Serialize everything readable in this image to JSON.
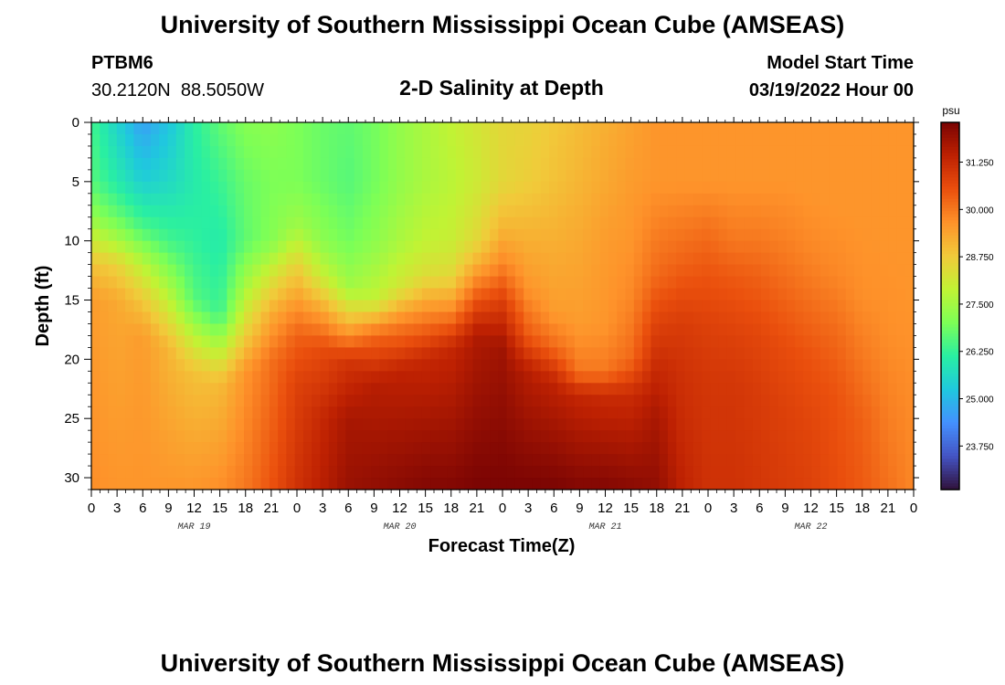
{
  "header": {
    "title": "University of Southern Mississippi Ocean Cube (AMSEAS)",
    "station_id": "PTBM6",
    "coords": "30.2120N  88.5050W",
    "subtitle": "2-D Salinity at Depth",
    "model_start_label": "Model Start Time",
    "model_start_value": "03/19/2022 Hour 00"
  },
  "footer": {
    "title": "University of Southern Mississippi Ocean Cube (AMSEAS)"
  },
  "chart_data": {
    "type": "heatmap",
    "title": "2-D Salinity at Depth",
    "xlabel": "Forecast Time(Z)",
    "ylabel": "Depth (ft)",
    "x_hours_range": [
      0,
      96
    ],
    "xlim_hours": [
      0,
      96
    ],
    "ylim": [
      0,
      31
    ],
    "x_tick_hours": [
      0,
      3,
      6,
      9,
      12,
      15,
      18,
      21,
      24,
      27,
      30,
      33,
      36,
      39,
      42,
      45,
      48,
      51,
      54,
      57,
      60,
      63,
      66,
      69,
      72,
      75,
      78,
      81,
      84,
      87,
      90,
      93,
      96
    ],
    "x_tick_labels": [
      "0",
      "3",
      "6",
      "9",
      "12",
      "15",
      "18",
      "21",
      "0",
      "3",
      "6",
      "9",
      "12",
      "15",
      "18",
      "21",
      "0",
      "3",
      "6",
      "9",
      "12",
      "15",
      "18",
      "21",
      "0",
      "3",
      "6",
      "9",
      "12",
      "15",
      "18",
      "21",
      "0"
    ],
    "day_labels": [
      {
        "hour": 12,
        "text": "MAR 19"
      },
      {
        "hour": 36,
        "text": "MAR 20"
      },
      {
        "hour": 60,
        "text": "MAR 21"
      },
      {
        "hour": 84,
        "text": "MAR 22"
      }
    ],
    "y_ticks": [
      0,
      5,
      10,
      15,
      20,
      25,
      30
    ],
    "colorbar": {
      "unit": "psu",
      "range": [
        22.6,
        32.3
      ],
      "ticks": [
        23.75,
        25.0,
        26.25,
        27.5,
        28.75,
        30.0,
        31.25
      ],
      "tick_labels": [
        "23.750",
        "25.000",
        "26.250",
        "27.500",
        "28.750",
        "30.000",
        "31.250"
      ],
      "colors": [
        "#30123b",
        "#4454c4",
        "#4490fe",
        "#1fc8de",
        "#29efa2",
        "#7dff56",
        "#c1f334",
        "#f1ca3a",
        "#fe922a",
        "#ea4f0d",
        "#be2102",
        "#7a0403"
      ]
    },
    "grid": false,
    "profiles_note": "Each profile: [depth_ft, salinity_psu] control points; salinity interpolated linearly between points.",
    "profiles": [
      {
        "hour": 0,
        "points": [
          [
            0,
            26.4
          ],
          [
            5,
            26.6
          ],
          [
            8,
            27.3
          ],
          [
            10,
            28.1
          ],
          [
            12,
            28.9
          ],
          [
            15,
            29.5
          ],
          [
            31,
            29.7
          ]
        ]
      },
      {
        "hour": 3,
        "points": [
          [
            0,
            25.5
          ],
          [
            5,
            26.0
          ],
          [
            8,
            26.8
          ],
          [
            10,
            27.6
          ],
          [
            12,
            28.6
          ],
          [
            15,
            29.3
          ],
          [
            31,
            29.6
          ]
        ]
      },
      {
        "hour": 6,
        "points": [
          [
            0,
            24.6
          ],
          [
            5,
            25.4
          ],
          [
            9,
            26.5
          ],
          [
            12,
            27.8
          ],
          [
            15,
            28.8
          ],
          [
            18,
            29.5
          ],
          [
            31,
            29.6
          ]
        ]
      },
      {
        "hour": 9,
        "points": [
          [
            0,
            25.2
          ],
          [
            5,
            25.6
          ],
          [
            10,
            26.4
          ],
          [
            13,
            27.3
          ],
          [
            16,
            28.2
          ],
          [
            19,
            29.1
          ],
          [
            31,
            29.6
          ]
        ]
      },
      {
        "hour": 12,
        "points": [
          [
            0,
            26.1
          ],
          [
            5,
            26.0
          ],
          [
            10,
            26.2
          ],
          [
            15,
            26.6
          ],
          [
            18,
            27.8
          ],
          [
            21,
            28.9
          ],
          [
            31,
            29.6
          ]
        ]
      },
      {
        "hour": 15,
        "points": [
          [
            0,
            26.7
          ],
          [
            5,
            26.3
          ],
          [
            10,
            26.0
          ],
          [
            16,
            26.3
          ],
          [
            19,
            27.7
          ],
          [
            22,
            29.0
          ],
          [
            31,
            29.7
          ]
        ]
      },
      {
        "hour": 18,
        "points": [
          [
            0,
            27.1
          ],
          [
            5,
            26.8
          ],
          [
            10,
            26.7
          ],
          [
            14,
            27.6
          ],
          [
            18,
            28.7
          ],
          [
            21,
            29.6
          ],
          [
            31,
            30.0
          ]
        ]
      },
      {
        "hour": 21,
        "points": [
          [
            0,
            27.2
          ],
          [
            5,
            27.0
          ],
          [
            10,
            27.1
          ],
          [
            13,
            28.2
          ],
          [
            16,
            29.2
          ],
          [
            20,
            30.1
          ],
          [
            31,
            30.5
          ]
        ]
      },
      {
        "hour": 24,
        "points": [
          [
            0,
            27.0
          ],
          [
            5,
            27.0
          ],
          [
            9,
            27.5
          ],
          [
            12,
            28.6
          ],
          [
            15,
            29.5
          ],
          [
            18,
            30.3
          ],
          [
            22,
            30.8
          ],
          [
            31,
            31.1
          ]
        ]
      },
      {
        "hour": 27,
        "points": [
          [
            0,
            26.8
          ],
          [
            5,
            26.8
          ],
          [
            10,
            27.2
          ],
          [
            13,
            28.0
          ],
          [
            16,
            29.4
          ],
          [
            19,
            30.6
          ],
          [
            25,
            31.3
          ],
          [
            31,
            31.5
          ]
        ]
      },
      {
        "hour": 30,
        "points": [
          [
            0,
            26.7
          ],
          [
            5,
            26.6
          ],
          [
            10,
            26.9
          ],
          [
            14,
            27.5
          ],
          [
            17,
            29.1
          ],
          [
            20,
            31.0
          ],
          [
            25,
            31.7
          ],
          [
            31,
            31.9
          ]
        ]
      },
      {
        "hour": 33,
        "points": [
          [
            0,
            26.9
          ],
          [
            5,
            26.9
          ],
          [
            10,
            27.2
          ],
          [
            15,
            27.9
          ],
          [
            18,
            30.2
          ],
          [
            22,
            31.5
          ],
          [
            31,
            32.0
          ]
        ]
      },
      {
        "hour": 36,
        "points": [
          [
            0,
            27.3
          ],
          [
            5,
            27.3
          ],
          [
            10,
            27.6
          ],
          [
            14,
            28.2
          ],
          [
            17,
            29.9
          ],
          [
            21,
            31.4
          ],
          [
            31,
            32.1
          ]
        ]
      },
      {
        "hour": 39,
        "points": [
          [
            0,
            27.6
          ],
          [
            5,
            27.6
          ],
          [
            10,
            27.9
          ],
          [
            13,
            28.4
          ],
          [
            16,
            29.7
          ],
          [
            20,
            31.3
          ],
          [
            31,
            32.2
          ]
        ]
      },
      {
        "hour": 42,
        "points": [
          [
            0,
            27.9
          ],
          [
            5,
            27.8
          ],
          [
            10,
            28.0
          ],
          [
            13,
            28.5
          ],
          [
            16,
            29.8
          ],
          [
            19,
            31.3
          ],
          [
            31,
            32.2
          ]
        ]
      },
      {
        "hour": 45,
        "points": [
          [
            0,
            28.2
          ],
          [
            5,
            28.1
          ],
          [
            10,
            28.5
          ],
          [
            12,
            29.2
          ],
          [
            15,
            30.5
          ],
          [
            18,
            31.6
          ],
          [
            31,
            32.3
          ]
        ]
      },
      {
        "hour": 48,
        "points": [
          [
            0,
            28.5
          ],
          [
            5,
            28.5
          ],
          [
            9,
            29.1
          ],
          [
            12,
            29.8
          ],
          [
            15,
            30.8
          ],
          [
            19,
            31.8
          ],
          [
            31,
            32.3
          ]
        ]
      },
      {
        "hour": 51,
        "points": [
          [
            0,
            28.6
          ],
          [
            5,
            28.7
          ],
          [
            10,
            29.2
          ],
          [
            14,
            29.6
          ],
          [
            18,
            30.4
          ],
          [
            21,
            31.5
          ],
          [
            31,
            32.3
          ]
        ]
      },
      {
        "hour": 54,
        "points": [
          [
            0,
            28.8
          ],
          [
            5,
            28.9
          ],
          [
            10,
            29.2
          ],
          [
            16,
            29.5
          ],
          [
            19,
            30.2
          ],
          [
            22,
            31.4
          ],
          [
            31,
            32.3
          ]
        ]
      },
      {
        "hour": 57,
        "points": [
          [
            0,
            29.0
          ],
          [
            5,
            29.1
          ],
          [
            10,
            29.3
          ],
          [
            17,
            29.5
          ],
          [
            21,
            30.0
          ],
          [
            23,
            31.3
          ],
          [
            31,
            32.2
          ]
        ]
      },
      {
        "hour": 60,
        "points": [
          [
            0,
            29.2
          ],
          [
            5,
            29.3
          ],
          [
            10,
            29.5
          ],
          [
            17,
            29.6
          ],
          [
            21,
            30.0
          ],
          [
            23,
            31.2
          ],
          [
            31,
            32.2
          ]
        ]
      },
      {
        "hour": 63,
        "points": [
          [
            0,
            29.4
          ],
          [
            5,
            29.5
          ],
          [
            10,
            29.6
          ],
          [
            15,
            29.8
          ],
          [
            20,
            30.2
          ],
          [
            23,
            31.2
          ],
          [
            31,
            32.1
          ]
        ]
      },
      {
        "hour": 66,
        "points": [
          [
            0,
            29.6
          ],
          [
            5,
            29.6
          ],
          [
            9,
            29.9
          ],
          [
            13,
            30.2
          ],
          [
            17,
            30.8
          ],
          [
            21,
            31.3
          ],
          [
            25,
            31.7
          ],
          [
            31,
            32.0
          ]
        ]
      },
      {
        "hour": 69,
        "points": [
          [
            0,
            29.6
          ],
          [
            5,
            29.6
          ],
          [
            9,
            30.0
          ],
          [
            12,
            30.3
          ],
          [
            17,
            30.9
          ],
          [
            21,
            31.1
          ],
          [
            25,
            31.2
          ],
          [
            31,
            31.4
          ]
        ]
      },
      {
        "hour": 72,
        "points": [
          [
            0,
            29.6
          ],
          [
            5,
            29.6
          ],
          [
            9,
            30.1
          ],
          [
            12,
            30.4
          ],
          [
            17,
            30.8
          ],
          [
            22,
            31.0
          ],
          [
            31,
            31.1
          ]
        ]
      },
      {
        "hour": 75,
        "points": [
          [
            0,
            29.6
          ],
          [
            5,
            29.6
          ],
          [
            10,
            30.0
          ],
          [
            13,
            30.4
          ],
          [
            18,
            30.8
          ],
          [
            22,
            31.0
          ],
          [
            31,
            31.1
          ]
        ]
      },
      {
        "hour": 78,
        "points": [
          [
            0,
            29.6
          ],
          [
            5,
            29.6
          ],
          [
            10,
            30.0
          ],
          [
            13,
            30.3
          ],
          [
            18,
            30.7
          ],
          [
            23,
            30.9
          ],
          [
            31,
            31.0
          ]
        ]
      },
      {
        "hour": 81,
        "points": [
          [
            0,
            29.6
          ],
          [
            5,
            29.6
          ],
          [
            10,
            29.9
          ],
          [
            14,
            30.2
          ],
          [
            19,
            30.6
          ],
          [
            24,
            30.8
          ],
          [
            31,
            30.9
          ]
        ]
      },
      {
        "hour": 84,
        "points": [
          [
            0,
            29.6
          ],
          [
            6,
            29.6
          ],
          [
            11,
            29.8
          ],
          [
            15,
            30.1
          ],
          [
            20,
            30.5
          ],
          [
            25,
            30.7
          ],
          [
            31,
            30.8
          ]
        ]
      },
      {
        "hour": 87,
        "points": [
          [
            0,
            29.6
          ],
          [
            7,
            29.6
          ],
          [
            13,
            29.8
          ],
          [
            18,
            30.2
          ],
          [
            23,
            30.5
          ],
          [
            31,
            30.6
          ]
        ]
      },
      {
        "hour": 90,
        "points": [
          [
            0,
            29.6
          ],
          [
            8,
            29.6
          ],
          [
            15,
            29.7
          ],
          [
            20,
            30.0
          ],
          [
            25,
            30.3
          ],
          [
            31,
            30.4
          ]
        ]
      },
      {
        "hour": 93,
        "points": [
          [
            0,
            29.6
          ],
          [
            10,
            29.6
          ],
          [
            18,
            29.7
          ],
          [
            24,
            29.9
          ],
          [
            31,
            30.1
          ]
        ]
      },
      {
        "hour": 96,
        "points": [
          [
            0,
            29.6
          ],
          [
            14,
            29.6
          ],
          [
            22,
            29.7
          ],
          [
            31,
            29.8
          ]
        ]
      }
    ]
  }
}
